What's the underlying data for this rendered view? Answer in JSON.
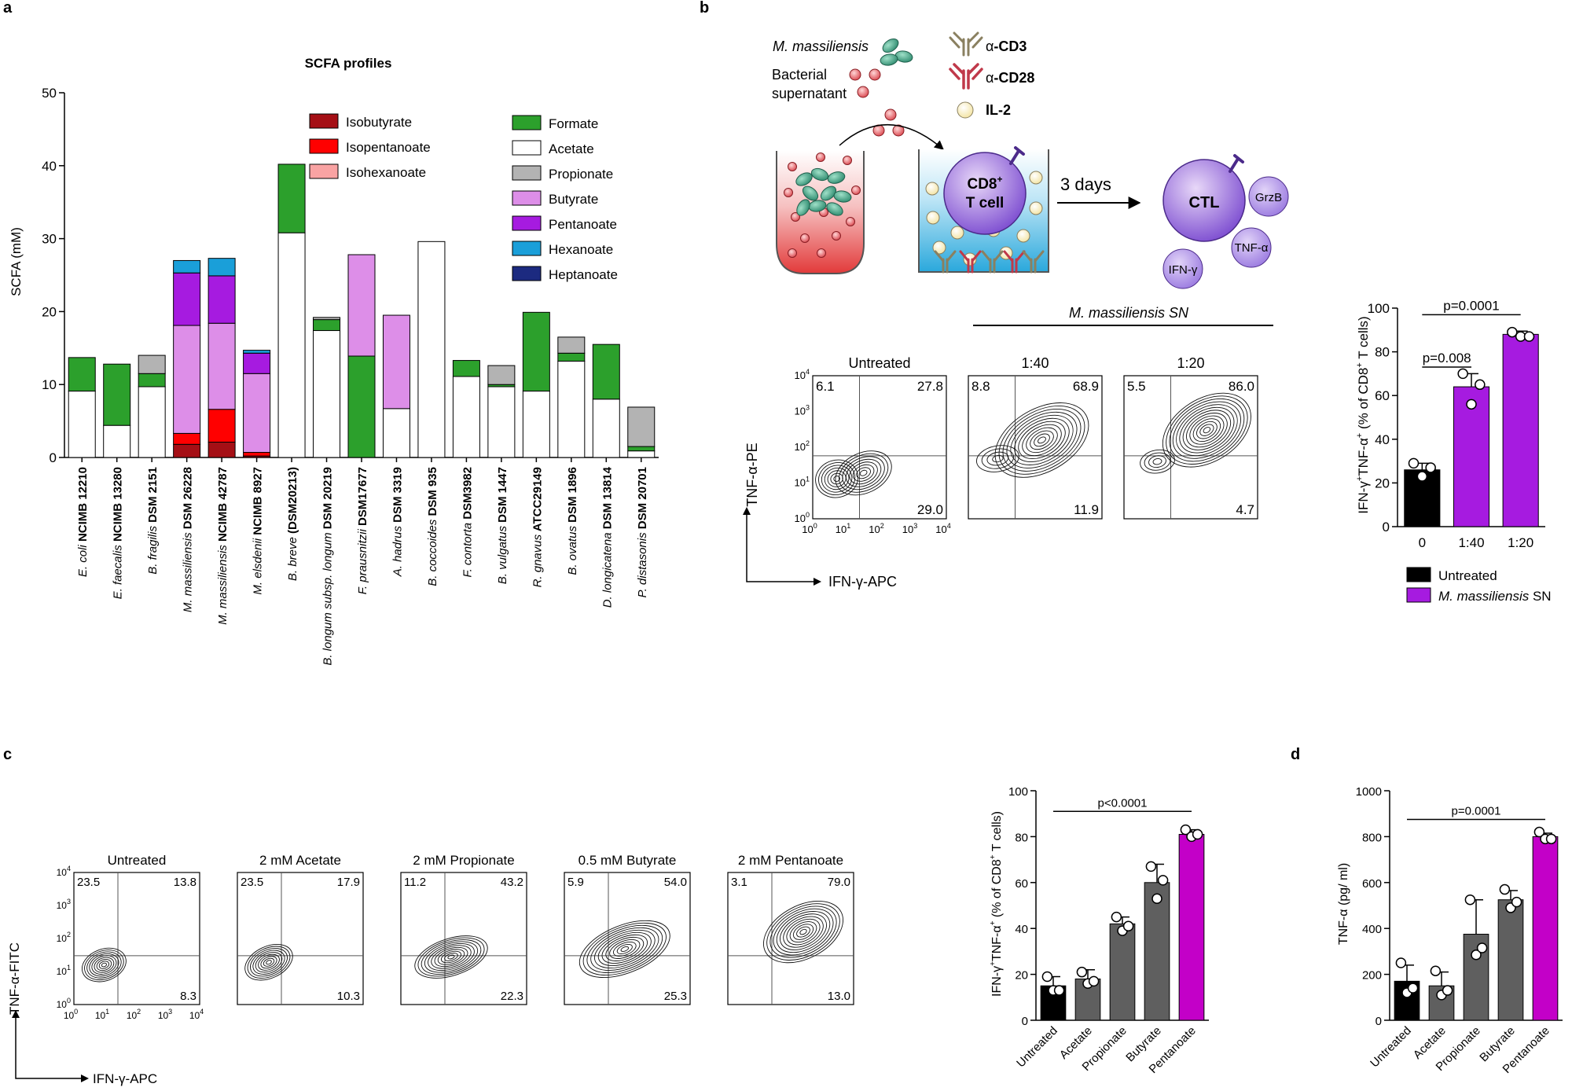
{
  "panel_labels": [
    "a",
    "b",
    "c",
    "d"
  ],
  "colors": {
    "Isobutyrate": "#a50f15",
    "Isopentanoate": "#ff0000",
    "Isohexanoate": "#f9a3a3",
    "Formate": "#2ca02c",
    "Acetate": "#ffffff",
    "Propionate": "#b3b3b3",
    "Butyrate": "#dd8ee8",
    "Pentanoate": "#a61be0",
    "Hexanoate": "#1a9fd9",
    "Heptanoate": "#1c2a80",
    "untreated_bar": "#000000",
    "msn_bar": "#a61be0",
    "grey_bar": "#5f5f5f",
    "pent_bar": "#c300c8"
  },
  "schematic": {
    "organism": "M. massiliensis",
    "supernatant": [
      "Bacterial",
      "supernatant"
    ],
    "reagents": [
      {
        "pre": "α",
        "label": "-CD3"
      },
      {
        "pre": "α",
        "label": "-CD28"
      },
      {
        "pre": "",
        "label": "IL-2"
      }
    ],
    "cd8": [
      "CD8",
      "+",
      "T cell"
    ],
    "days": "3 days",
    "ctl": "CTL",
    "cytokines": [
      "GrzB",
      "TNF-α",
      "IFN-γ"
    ]
  },
  "flow_b": {
    "header": "M. massiliensis SN",
    "y_label": "TNF-α-PE",
    "x_label": "IFN-γ-APC",
    "plots": [
      {
        "title": "Untreated",
        "tl": "6.1",
        "tr": "27.8",
        "br": "29.0"
      },
      {
        "title": "1:40",
        "tl": "8.8",
        "tr": "68.9",
        "br": "11.9"
      },
      {
        "title": "1:20",
        "tl": "5.5",
        "tr": "86.0",
        "br": "4.7"
      }
    ],
    "ticks": [
      {
        "b": "10",
        "e": "0"
      },
      {
        "b": "10",
        "e": "1"
      },
      {
        "b": "10",
        "e": "2"
      },
      {
        "b": "10",
        "e": "3"
      },
      {
        "b": "10",
        "e": "4"
      }
    ]
  },
  "flow_c": {
    "y_label": "TNF-α-FITC",
    "x_label": "IFN-γ-APC",
    "plots": [
      {
        "title": "Untreated",
        "tl": "23.5",
        "tr": "13.8",
        "br": "8.3"
      },
      {
        "title": "2 mM Acetate",
        "tl": "23.5",
        "tr": "17.9",
        "br": "10.3"
      },
      {
        "title": "2 mM Propionate",
        "tl": "11.2",
        "tr": "43.2",
        "br": "22.3"
      },
      {
        "title": "0.5 mM Butyrate",
        "tl": "5.9",
        "tr": "54.0",
        "br": "25.3"
      },
      {
        "title": "2 mM Pentanoate",
        "tl": "3.1",
        "tr": "79.0",
        "br": "13.0"
      }
    ]
  },
  "chart_data": [
    {
      "id": "a",
      "type": "bar",
      "stacked": true,
      "title": "SCFA profiles",
      "ylabel": "SCFA (mM)",
      "ylim": [
        0,
        50
      ],
      "yticks": [
        0,
        10,
        20,
        30,
        40,
        50
      ],
      "categories": [
        [
          {
            "t": "E. coli",
            "i": true
          },
          {
            "t": " NCIMB 12210",
            "b": true
          }
        ],
        [
          {
            "t": "E. faecalis",
            "i": true
          },
          {
            "t": " NCIMB 13280",
            "b": true
          }
        ],
        [
          {
            "t": "B. fragilis",
            "i": true
          },
          {
            "t": " DSM 2151",
            "b": true
          }
        ],
        [
          {
            "t": "M. massiliensis",
            "i": true
          },
          {
            "t": " DSM 26228",
            "b": true
          }
        ],
        [
          {
            "t": "M. massiliensis",
            "i": true
          },
          {
            "t": " NCIMB 42787",
            "b": true
          }
        ],
        [
          {
            "t": "M. elsdenii",
            "i": true
          },
          {
            "t": " NCIMB 8927",
            "b": true
          }
        ],
        [
          {
            "t": "B. breve",
            "i": true
          },
          {
            "t": " (DSM20213)",
            "b": true
          }
        ],
        [
          {
            "t": "B. longum subsp. longum",
            "i": true
          },
          {
            "t": " DSM 20219",
            "b": true
          }
        ],
        [
          {
            "t": "F. prausnitzii",
            "i": true
          },
          {
            "t": " DSM17677",
            "b": true
          }
        ],
        [
          {
            "t": "A. hadrus",
            "i": true
          },
          {
            "t": " DSM 3319",
            "b": true
          }
        ],
        [
          {
            "t": "B. coccoides",
            "i": true
          },
          {
            "t": " DSM 935",
            "b": true
          }
        ],
        [
          {
            "t": "F. contorta",
            "i": true
          },
          {
            "t": " DSM3982",
            "b": true
          }
        ],
        [
          {
            "t": "B. vulgatus",
            "i": true
          },
          {
            "t": " DSM 1447",
            "b": true
          }
        ],
        [
          {
            "t": "R. gnavus",
            "i": true
          },
          {
            "t": " ATCC29149",
            "b": true
          }
        ],
        [
          {
            "t": "B. ovatus",
            "i": true
          },
          {
            "t": " DSM 1896",
            "b": true
          }
        ],
        [
          {
            "t": "D. longicatena",
            "i": true
          },
          {
            "t": " DSM 13814",
            "b": true
          }
        ],
        [
          {
            "t": "P. distasonis",
            "i": true
          },
          {
            "t": " DSM 20701",
            "b": true
          }
        ]
      ],
      "legend": [
        [
          "Isobutyrate",
          "Isopentanoate",
          "Isohexanoate"
        ],
        [
          "Formate",
          "Acetate",
          "Propionate",
          "Butyrate",
          "Pentanoate",
          "Hexanoate",
          "Heptanoate"
        ]
      ],
      "stack_order": [
        "Isobutyrate",
        "Isopentanoate",
        "Isohexanoate",
        "Acetate",
        "Formate",
        "Propionate",
        "Butyrate",
        "Pentanoate",
        "Hexanoate",
        "Heptanoate"
      ],
      "series": [
        {
          "name": "Isobutyrate",
          "values": [
            0,
            0,
            0,
            1.8,
            2.1,
            0.2,
            0,
            0,
            0,
            0,
            0,
            0,
            0,
            0,
            0,
            0,
            0
          ]
        },
        {
          "name": "Isopentanoate",
          "values": [
            0,
            0,
            0,
            1.5,
            4.5,
            0.5,
            0,
            0,
            0,
            0,
            0,
            0,
            0,
            0,
            0,
            0,
            0
          ]
        },
        {
          "name": "Isohexanoate",
          "values": [
            0,
            0,
            0,
            0,
            0,
            0,
            0,
            0,
            0,
            0,
            0,
            0,
            0,
            0,
            0,
            0,
            0
          ]
        },
        {
          "name": "Acetate",
          "values": [
            9.1,
            4.4,
            9.7,
            0,
            0,
            0,
            30.8,
            17.4,
            0,
            6.7,
            29.6,
            11.1,
            9.7,
            9.1,
            13.2,
            8.0,
            0.9
          ]
        },
        {
          "name": "Formate",
          "values": [
            4.6,
            8.4,
            1.8,
            0,
            0,
            0,
            9.4,
            1.5,
            13.9,
            0,
            0,
            2.2,
            0.3,
            10.8,
            1.1,
            7.5,
            0.6
          ]
        },
        {
          "name": "Propionate",
          "values": [
            0,
            0,
            2.5,
            0,
            0,
            0,
            0,
            0.3,
            0,
            0,
            0,
            0,
            2.6,
            0,
            2.2,
            0,
            5.4
          ]
        },
        {
          "name": "Butyrate",
          "values": [
            0,
            0,
            0,
            14.8,
            11.8,
            10.8,
            0,
            0,
            13.9,
            12.8,
            0,
            0,
            0,
            0,
            0,
            0,
            0
          ]
        },
        {
          "name": "Pentanoate",
          "values": [
            0,
            0,
            0,
            7.2,
            6.5,
            2.8,
            0,
            0,
            0,
            0,
            0,
            0,
            0,
            0,
            0,
            0,
            0
          ]
        },
        {
          "name": "Hexanoate",
          "values": [
            0,
            0,
            0,
            1.7,
            2.4,
            0.4,
            0,
            0,
            0,
            0,
            0,
            0,
            0,
            0,
            0,
            0,
            0
          ]
        },
        {
          "name": "Heptanoate",
          "values": [
            0,
            0,
            0,
            0,
            0,
            0,
            0,
            0,
            0,
            0,
            0,
            0,
            0,
            0,
            0,
            0,
            0
          ]
        }
      ]
    },
    {
      "id": "b",
      "type": "bar",
      "ylabel": [
        "IFN-γ",
        "+",
        "TNF-α",
        "+",
        " (% of CD8",
        "+",
        " T cells)"
      ],
      "ylim": [
        0,
        100
      ],
      "yticks": [
        0,
        20,
        40,
        60,
        80,
        100
      ],
      "categories": [
        "0",
        "1:40",
        "1:20"
      ],
      "values": [
        26,
        64,
        88
      ],
      "errors": [
        3,
        6,
        1.5
      ],
      "points": [
        [
          29,
          23,
          27
        ],
        [
          70,
          56,
          65
        ],
        [
          89,
          87,
          87
        ]
      ],
      "bar_series": [
        "Untreated",
        "M. massiliensis SN",
        "M. massiliensis SN"
      ],
      "annotations": [
        {
          "text": "p=0.008",
          "from": 0,
          "to": 1,
          "y": 73
        },
        {
          "text": "p=0.0001",
          "from": 0,
          "to": 2,
          "y": 97
        }
      ],
      "legend": [
        {
          "name": "Untreated",
          "italic": false
        },
        {
          "name": "M. massiliensis",
          "italic": true,
          "suffix": " SN"
        }
      ]
    },
    {
      "id": "c",
      "type": "bar",
      "ylabel": [
        "IFN-γ",
        "+",
        "TNF-α",
        "+",
        " (% of CD8",
        "+",
        " T cells)"
      ],
      "ylim": [
        0,
        100
      ],
      "yticks": [
        0,
        20,
        40,
        60,
        80,
        100
      ],
      "categories": [
        "Untreated",
        "Acetate",
        "Propionate",
        "Butyrate",
        "Pentanoate"
      ],
      "values": [
        15,
        18,
        42,
        60,
        81
      ],
      "errors": [
        4,
        4,
        3,
        8,
        2
      ],
      "points": [
        [
          19,
          13,
          13
        ],
        [
          21,
          16,
          17
        ],
        [
          45,
          39,
          41
        ],
        [
          67,
          53,
          61
        ],
        [
          83,
          80,
          81
        ]
      ],
      "annotations": [
        {
          "text": "p<0.0001",
          "from": 0,
          "to": 4,
          "y": 91
        }
      ]
    },
    {
      "id": "d",
      "type": "bar",
      "ylabel": "TNF-α (pg/ ml)",
      "ylim": [
        0,
        1000
      ],
      "yticks": [
        0,
        200,
        400,
        600,
        800,
        1000
      ],
      "categories": [
        "Untreated",
        "Acetate",
        "Propionate",
        "Butyrate",
        "Pentanoate"
      ],
      "values": [
        170,
        150,
        375,
        525,
        800
      ],
      "errors": [
        70,
        60,
        150,
        40,
        15
      ],
      "points": [
        [
          250,
          120,
          140
        ],
        [
          215,
          110,
          130
        ],
        [
          525,
          285,
          315
        ],
        [
          570,
          490,
          515
        ],
        [
          820,
          790,
          790
        ]
      ],
      "annotations": [
        {
          "text": "p=0.0001",
          "from": 0,
          "to": 4,
          "y": 875
        }
      ]
    }
  ]
}
